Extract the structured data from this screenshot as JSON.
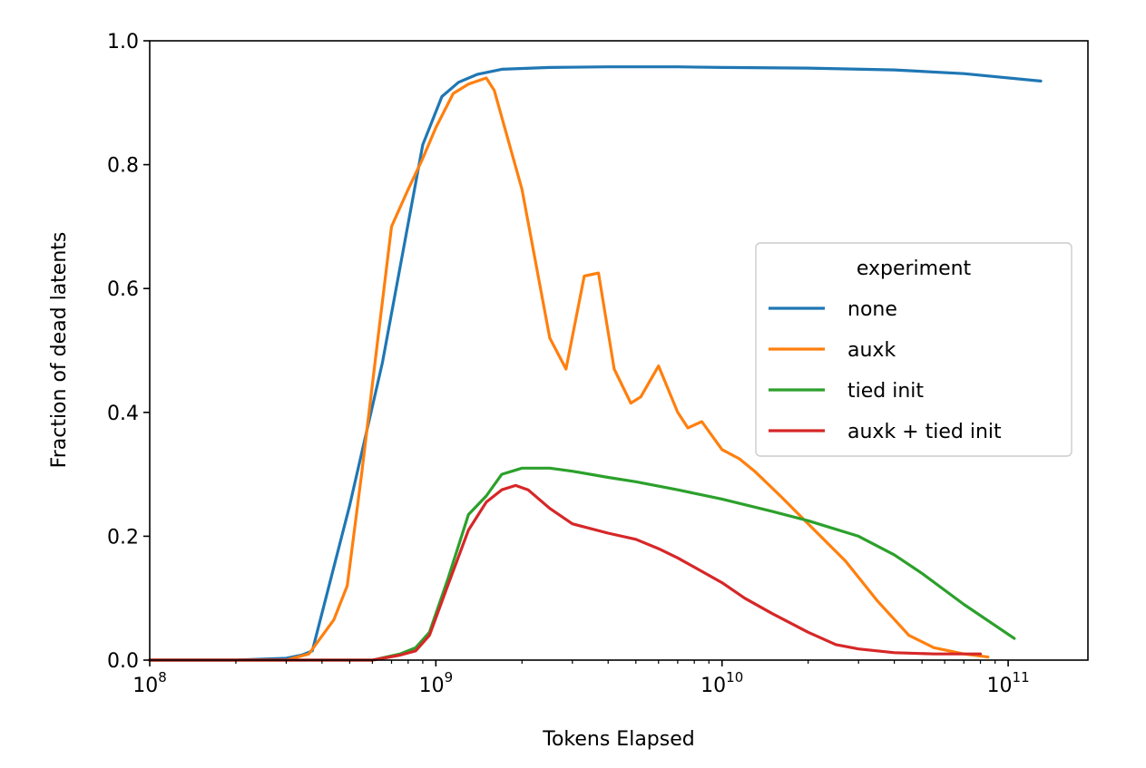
{
  "chart_data": {
    "type": "line",
    "xlabel": "Tokens Elapsed",
    "ylabel": "Fraction of dead latents",
    "x_scale": "log",
    "xlim": [
      100000000,
      190000000000
    ],
    "ylim": [
      0.0,
      1.0
    ],
    "x_ticks": [
      {
        "value": 100000000,
        "base": "10",
        "exp": "8"
      },
      {
        "value": 1000000000,
        "base": "10",
        "exp": "9"
      },
      {
        "value": 10000000000,
        "base": "10",
        "exp": "10"
      },
      {
        "value": 100000000000,
        "base": "10",
        "exp": "11"
      }
    ],
    "y_ticks": [
      {
        "value": 0.0,
        "label": "0.0"
      },
      {
        "value": 0.2,
        "label": "0.2"
      },
      {
        "value": 0.4,
        "label": "0.4"
      },
      {
        "value": 0.6,
        "label": "0.6"
      },
      {
        "value": 0.8,
        "label": "0.8"
      },
      {
        "value": 1.0,
        "label": "1.0"
      }
    ],
    "grid": false,
    "legend": {
      "title": "experiment",
      "position": "center-right"
    },
    "series": [
      {
        "name": "none",
        "color": "#1f77b4",
        "x": [
          100000000,
          200000000,
          300000000,
          340000000,
          370000000,
          500000000,
          650000000,
          900000000,
          1050000000,
          1200000000,
          1400000000,
          1700000000,
          2500000000,
          4000000000,
          7000000000,
          10000000000,
          20000000000,
          40000000000,
          70000000000,
          130000000000
        ],
        "y": [
          0.0,
          0.0,
          0.003,
          0.008,
          0.015,
          0.25,
          0.48,
          0.832,
          0.91,
          0.933,
          0.946,
          0.954,
          0.957,
          0.958,
          0.958,
          0.957,
          0.956,
          0.953,
          0.947,
          0.935
        ]
      },
      {
        "name": "auxk",
        "color": "#ff7f0e",
        "x": [
          100000000,
          200000000,
          300000000,
          360000000,
          440000000,
          490000000,
          550000000,
          620000000,
          700000000,
          800000000,
          900000000,
          1000000000,
          1150000000,
          1300000000,
          1500000000,
          1600000000,
          2000000000,
          2500000000,
          2850000000,
          3300000000,
          3700000000,
          4200000000,
          4800000000,
          5200000000,
          6000000000,
          7000000000,
          7600000000,
          8500000000,
          10000000000,
          11500000000,
          13000000000,
          16000000000,
          20000000000,
          27000000000,
          35000000000,
          45000000000,
          55000000000,
          70000000000,
          85000000000
        ],
        "y": [
          0.0,
          0.0,
          0.0,
          0.01,
          0.065,
          0.12,
          0.3,
          0.5,
          0.7,
          0.76,
          0.81,
          0.86,
          0.915,
          0.93,
          0.94,
          0.92,
          0.76,
          0.52,
          0.47,
          0.62,
          0.625,
          0.47,
          0.415,
          0.425,
          0.475,
          0.4,
          0.375,
          0.385,
          0.34,
          0.325,
          0.305,
          0.265,
          0.22,
          0.16,
          0.095,
          0.04,
          0.02,
          0.01,
          0.005
        ]
      },
      {
        "name": "tied init",
        "color": "#2ca02c",
        "x": [
          100000000,
          200000000,
          400000000,
          600000000,
          750000000,
          850000000,
          950000000,
          1100000000,
          1300000000,
          1500000000,
          1700000000,
          2000000000,
          2500000000,
          3000000000,
          4000000000,
          5000000000,
          7000000000,
          10000000000,
          15000000000,
          20000000000,
          30000000000,
          40000000000,
          50000000000,
          70000000000,
          105000000000
        ],
        "y": [
          0.0,
          0.0,
          0.0,
          0.0,
          0.01,
          0.02,
          0.045,
          0.13,
          0.235,
          0.265,
          0.3,
          0.31,
          0.31,
          0.305,
          0.295,
          0.288,
          0.275,
          0.26,
          0.24,
          0.225,
          0.2,
          0.17,
          0.14,
          0.09,
          0.035
        ]
      },
      {
        "name": "auxk + tied init",
        "color": "#d62728",
        "x": [
          100000000,
          300000000,
          600000000,
          750000000,
          850000000,
          950000000,
          1100000000,
          1300000000,
          1500000000,
          1700000000,
          1900000000,
          2100000000,
          2500000000,
          3000000000,
          4000000000,
          5000000000,
          6000000000,
          7000000000,
          8000000000,
          10000000000,
          12000000000,
          15000000000,
          20000000000,
          25000000000,
          30000000000,
          40000000000,
          55000000000,
          80000000000
        ],
        "y": [
          0.0,
          0.0,
          0.0,
          0.008,
          0.015,
          0.04,
          0.12,
          0.21,
          0.255,
          0.275,
          0.282,
          0.275,
          0.245,
          0.22,
          0.205,
          0.195,
          0.18,
          0.165,
          0.15,
          0.125,
          0.1,
          0.075,
          0.045,
          0.025,
          0.018,
          0.012,
          0.01,
          0.01
        ]
      }
    ]
  }
}
